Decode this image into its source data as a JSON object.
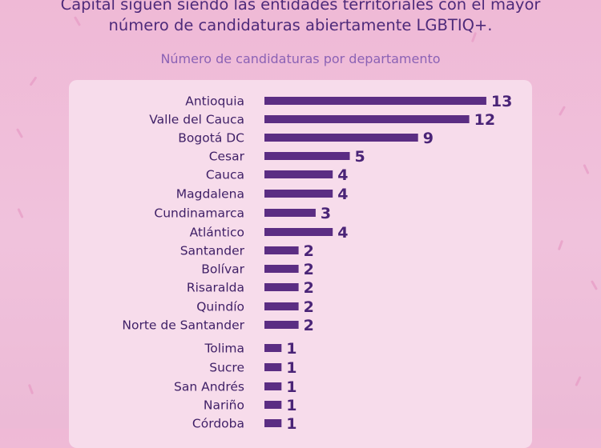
{
  "header": {
    "headline_line1": "Capital siguen siendo las entidades territoriales con el mayor",
    "headline_line2": "número de candidaturas abiertamente LGBTIQ+."
  },
  "colors": {
    "bar": "#5b2d83",
    "panel": "#f7dceb",
    "background": "#efb9d6"
  },
  "chart_data": {
    "type": "bar",
    "orientation": "horizontal",
    "title": "Número de candidaturas por departamento",
    "xlabel": "",
    "ylabel": "",
    "xlim": [
      0,
      13
    ],
    "grid": false,
    "categories": [
      "Antioquia",
      "Valle del Cauca",
      "Bogotá DC",
      "Cesar",
      "Cauca",
      "Magdalena",
      "Cundinamarca",
      "Atlántico",
      "Santander",
      "Bolívar",
      "Risaralda",
      "Quindío",
      "Norte de Santander",
      "Tolima",
      "Sucre",
      "San Andrés",
      "Nariño",
      "Córdoba"
    ],
    "values": [
      13,
      12,
      9,
      5,
      4,
      4,
      3,
      4,
      2,
      2,
      2,
      2,
      2,
      1,
      1,
      1,
      1,
      1
    ]
  }
}
